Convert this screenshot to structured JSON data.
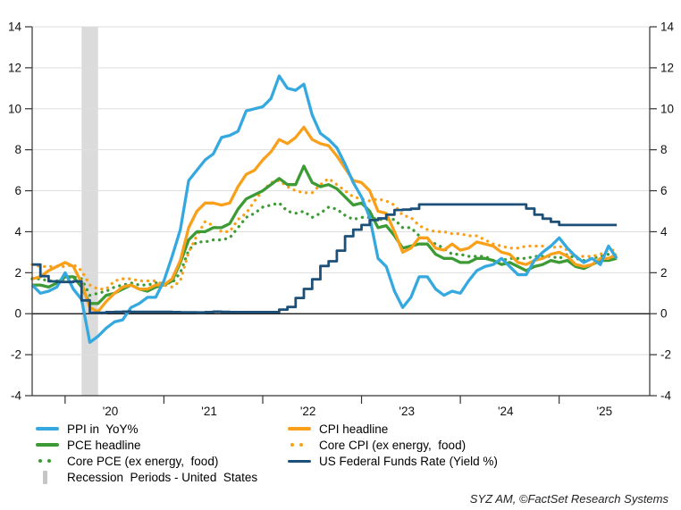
{
  "chart_data": {
    "type": "line",
    "title": "",
    "x_unit": "month",
    "x_start_month": "2019-09",
    "x_domain_months": 75,
    "ylim": [
      -4,
      14
    ],
    "y_ticks": [
      14,
      12,
      10,
      8,
      6,
      4,
      2,
      0,
      -2,
      -4
    ],
    "x_tick_indices": [
      4,
      16,
      28,
      40,
      52,
      64
    ],
    "x_tick_labels": [
      "'20",
      "'21",
      "'22",
      "'23",
      "'24",
      "'25"
    ],
    "grid": "horizontal-only",
    "legend_position": "bottom",
    "recession_band": {
      "start_index": 6,
      "end_index": 8,
      "color": "#DBDBDB"
    },
    "series": [
      {
        "id": "core-pce",
        "name": "Core PCE (ex energy, food)",
        "color": "#3C9B35",
        "line_style": "dotted",
        "values": [
          1.7,
          1.7,
          1.6,
          1.6,
          1.7,
          1.8,
          1.7,
          0.9,
          1.0,
          1.1,
          1.3,
          1.4,
          1.5,
          1.4,
          1.4,
          1.5,
          1.5,
          1.5,
          2.0,
          3.1,
          3.5,
          3.5,
          3.6,
          3.6,
          3.7,
          4.2,
          4.7,
          4.9,
          5.2,
          5.3,
          5.4,
          5.0,
          4.9,
          5.0,
          4.7,
          4.9,
          5.2,
          5.1,
          4.8,
          4.6,
          4.7,
          4.7,
          4.6,
          4.6,
          4.6,
          4.2,
          4.2,
          3.8,
          3.6,
          3.4,
          3.2,
          2.9,
          2.9,
          2.8,
          2.8,
          2.8,
          2.6,
          2.6,
          2.7,
          2.7,
          2.7,
          2.8,
          2.8,
          2.8,
          2.7,
          2.9,
          2.7,
          2.6,
          2.7,
          2.8,
          2.9,
          2.9
        ]
      },
      {
        "id": "core-cpi",
        "name": "Core CPI (ex energy, food)",
        "color": "#F9A01B",
        "line_style": "dotted",
        "values": [
          2.4,
          2.3,
          2.3,
          2.3,
          2.3,
          2.4,
          2.1,
          1.4,
          1.2,
          1.2,
          1.6,
          1.7,
          1.7,
          1.6,
          1.6,
          1.6,
          1.4,
          1.3,
          1.6,
          3.0,
          3.8,
          4.5,
          4.3,
          4.0,
          4.0,
          4.6,
          4.9,
          5.5,
          6.0,
          6.4,
          6.5,
          6.2,
          6.0,
          5.9,
          5.9,
          6.3,
          6.6,
          6.3,
          6.0,
          5.7,
          5.6,
          5.5,
          5.6,
          5.5,
          5.3,
          4.8,
          4.7,
          4.3,
          4.1,
          4.0,
          4.0,
          3.9,
          3.9,
          3.8,
          3.8,
          3.6,
          3.4,
          3.3,
          3.2,
          3.2,
          3.3,
          3.3,
          3.3,
          3.2,
          3.3,
          3.1,
          2.8,
          2.8,
          2.8,
          2.9,
          3.1,
          3.1
        ]
      },
      {
        "id": "pce",
        "name": "PCE headline",
        "color": "#3C9B35",
        "line_style": "solid",
        "values": [
          1.4,
          1.4,
          1.3,
          1.5,
          1.8,
          1.8,
          1.3,
          0.5,
          0.5,
          0.9,
          1.0,
          1.2,
          1.4,
          1.2,
          1.1,
          1.3,
          1.4,
          1.6,
          2.5,
          3.6,
          4.0,
          4.0,
          4.2,
          4.2,
          4.4,
          5.1,
          5.6,
          5.8,
          6.0,
          6.3,
          6.6,
          6.3,
          6.3,
          7.2,
          6.4,
          6.2,
          6.3,
          6.1,
          5.7,
          5.3,
          5.4,
          5.0,
          4.2,
          4.3,
          3.8,
          3.2,
          3.3,
          3.4,
          3.4,
          2.9,
          2.7,
          2.7,
          2.5,
          2.5,
          2.7,
          2.7,
          2.6,
          2.4,
          2.5,
          2.3,
          2.1,
          2.3,
          2.4,
          2.6,
          2.5,
          2.6,
          2.3,
          2.2,
          2.4,
          2.6,
          2.6,
          2.7
        ]
      },
      {
        "id": "cpi",
        "name": "CPI headline",
        "color": "#F9A01B",
        "line_style": "solid",
        "values": [
          1.7,
          1.8,
          2.1,
          2.3,
          2.5,
          2.3,
          1.5,
          0.3,
          0.1,
          0.6,
          1.0,
          1.3,
          1.4,
          1.2,
          1.2,
          1.4,
          1.4,
          1.7,
          2.6,
          4.2,
          5.0,
          5.4,
          5.4,
          5.3,
          5.4,
          6.2,
          6.8,
          7.0,
          7.5,
          7.9,
          8.5,
          8.3,
          8.6,
          9.1,
          8.5,
          8.3,
          8.2,
          7.7,
          7.1,
          6.5,
          6.4,
          6.0,
          5.0,
          4.9,
          4.0,
          3.0,
          3.2,
          3.7,
          3.7,
          3.2,
          3.1,
          3.4,
          3.1,
          3.2,
          3.5,
          3.4,
          3.3,
          3.0,
          2.9,
          2.5,
          2.4,
          2.6,
          2.7,
          2.9,
          3.0,
          2.8,
          2.4,
          2.3,
          2.4,
          2.7,
          2.7,
          2.9
        ]
      },
      {
        "id": "ppi",
        "name": "PPI in YoY%",
        "color": "#35A9DF",
        "line_style": "solid",
        "values": [
          1.4,
          1.0,
          1.1,
          1.3,
          2.0,
          1.2,
          0.7,
          -1.4,
          -1.1,
          -0.7,
          -0.4,
          -0.3,
          0.3,
          0.5,
          0.8,
          0.8,
          1.6,
          2.8,
          4.1,
          6.5,
          7.0,
          7.5,
          7.8,
          8.6,
          8.7,
          8.9,
          9.9,
          10.0,
          10.1,
          10.5,
          11.6,
          11.0,
          10.9,
          11.2,
          9.7,
          8.8,
          8.5,
          8.1,
          7.3,
          6.4,
          5.7,
          4.7,
          2.7,
          2.3,
          1.1,
          0.3,
          0.8,
          1.8,
          1.8,
          1.2,
          0.9,
          1.1,
          1.0,
          1.6,
          2.1,
          2.3,
          2.4,
          2.7,
          2.3,
          1.9,
          1.9,
          2.6,
          3.0,
          3.3,
          3.7,
          3.2,
          2.8,
          2.5,
          2.7,
          2.4,
          3.3,
          2.7
        ]
      },
      {
        "id": "fed-funds",
        "name": "US Federal Funds Rate (Yield %)",
        "color": "#1D5078",
        "line_style": "step",
        "values": [
          2.4,
          1.83,
          1.58,
          1.55,
          1.55,
          1.58,
          0.65,
          0.05,
          0.05,
          0.08,
          0.09,
          0.1,
          0.09,
          0.09,
          0.09,
          0.09,
          0.09,
          0.08,
          0.07,
          0.07,
          0.06,
          0.08,
          0.1,
          0.09,
          0.08,
          0.08,
          0.08,
          0.08,
          0.08,
          0.08,
          0.2,
          0.33,
          0.77,
          1.21,
          1.68,
          2.33,
          2.56,
          3.08,
          3.78,
          4.1,
          4.33,
          4.57,
          4.65,
          4.83,
          5.06,
          5.08,
          5.12,
          5.33,
          5.33,
          5.33,
          5.33,
          5.33,
          5.33,
          5.33,
          5.33,
          5.33,
          5.33,
          5.33,
          5.33,
          5.33,
          5.13,
          4.83,
          4.64,
          4.48,
          4.33,
          4.33,
          4.33,
          4.33,
          4.33,
          4.33,
          4.33,
          4.33
        ]
      }
    ]
  },
  "legend": {
    "items": [
      {
        "label": "PPI in  YoY%",
        "color": "#35A9DF",
        "style": "solid"
      },
      {
        "label": "CPI headline",
        "color": "#F9A01B",
        "style": "solid"
      },
      {
        "label": "PCE headline",
        "color": "#3C9B35",
        "style": "solid"
      },
      {
        "label": "Core CPI (ex energy,  food)",
        "color": "#F9A01B",
        "style": "dotted"
      },
      {
        "label": "Core PCE (ex energy,  food)",
        "color": "#3C9B35",
        "style": "dotted"
      },
      {
        "label": "US Federal Funds Rate (Yield %)",
        "color": "#1D5078",
        "style": "solid-thin"
      },
      {
        "label": "Recession  Periods - United  States",
        "color": "#C6C6C6",
        "style": "bar"
      }
    ]
  },
  "footer": {
    "source": "SYZ AM, ©FactSet Research Systems"
  }
}
